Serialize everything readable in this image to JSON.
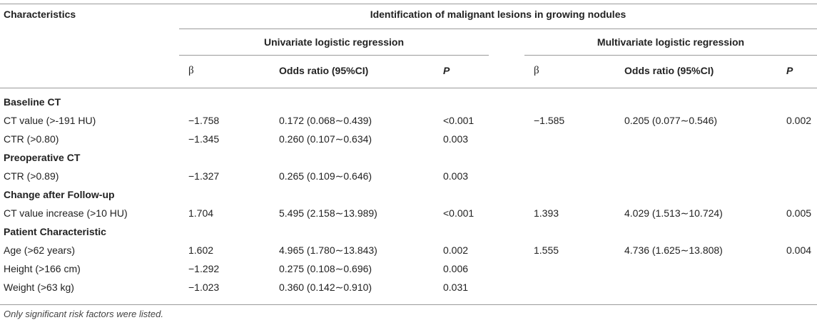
{
  "header": {
    "characteristics": "Characteristics",
    "group_title": "Identification of malignant lesions in growing nodules",
    "univariate": "Univariate logistic regression",
    "multivariate": "Multivariate logistic regression",
    "beta": "β",
    "odds_ratio": "Odds ratio (95%CI)",
    "p": "P"
  },
  "rows": [
    {
      "section": "Baseline CT"
    },
    {
      "label": "CT value (>-191 HU)",
      "u_beta": "−1.758",
      "u_or": "0.172 (0.068∼0.439)",
      "u_p": "<0.001",
      "m_beta": "−1.585",
      "m_or": "0.205 (0.077∼0.546)",
      "m_p": "0.002"
    },
    {
      "label": "CTR (>0.80)",
      "u_beta": "−1.345",
      "u_or": "0.260 (0.107∼0.634)",
      "u_p": "0.003",
      "m_beta": "",
      "m_or": "",
      "m_p": ""
    },
    {
      "section": "Preoperative CT"
    },
    {
      "label": "CTR (>0.89)",
      "u_beta": "−1.327",
      "u_or": "0.265 (0.109∼0.646)",
      "u_p": "0.003",
      "m_beta": "",
      "m_or": "",
      "m_p": ""
    },
    {
      "section": "Change after Follow-up"
    },
    {
      "label": "CT value increase (>10 HU)",
      "u_beta": "1.704",
      "u_or": "5.495 (2.158∼13.989)",
      "u_p": "<0.001",
      "m_beta": "1.393",
      "m_or": "4.029 (1.513∼10.724)",
      "m_p": "0.005"
    },
    {
      "section": "Patient Characteristic"
    },
    {
      "label": "Age (>62 years)",
      "u_beta": "1.602",
      "u_or": "4.965 (1.780∼13.843)",
      "u_p": "0.002",
      "m_beta": "1.555",
      "m_or": "4.736 (1.625∼13.808)",
      "m_p": "0.004"
    },
    {
      "label": "Height (>166 cm)",
      "u_beta": "−1.292",
      "u_or": "0.275 (0.108∼0.696)",
      "u_p": "0.006",
      "m_beta": "",
      "m_or": "",
      "m_p": ""
    },
    {
      "label": "Weight (>63 kg)",
      "u_beta": "−1.023",
      "u_or": "0.360 (0.142∼0.910)",
      "u_p": "0.031",
      "m_beta": "",
      "m_or": "",
      "m_p": ""
    }
  ],
  "footnote": "Only significant risk factors were listed."
}
